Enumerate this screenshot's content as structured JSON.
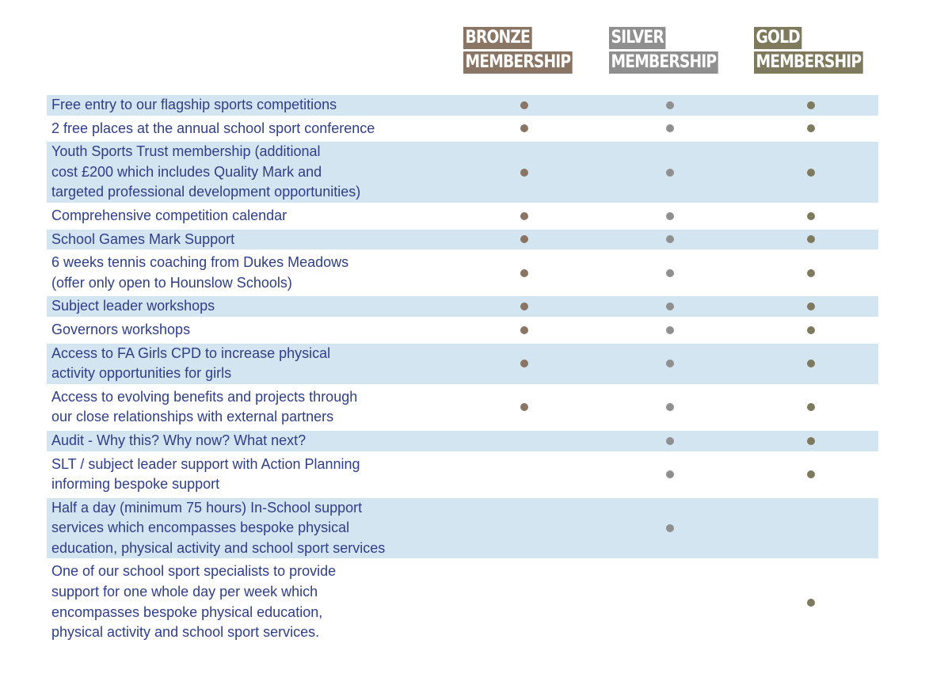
{
  "colors": {
    "bronze": "#8a7564",
    "silver": "#8f8f8f",
    "gold": "#7f7a5e",
    "row_shade": "#d3e5f0",
    "text": "#2f3e8a"
  },
  "tiers": [
    {
      "key": "bronze",
      "line1": "BRONZE",
      "line2": "MEMBERSHIP"
    },
    {
      "key": "silver",
      "line1": "SILVER",
      "line2": "MEMBERSHIP"
    },
    {
      "key": "gold",
      "line1": "GOLD",
      "line2": "MEMBERSHIP"
    }
  ],
  "rows": [
    {
      "label": "Free entry to our flagship sports competitions",
      "bronze": true,
      "silver": true,
      "gold": true
    },
    {
      "label": "2 free places at the annual school sport conference",
      "bronze": true,
      "silver": true,
      "gold": true
    },
    {
      "label": "Youth Sports Trust membership (additional\ncost £200 which includes Quality Mark and\ntargeted professional development opportunities)",
      "bronze": true,
      "silver": true,
      "gold": true
    },
    {
      "label": "Comprehensive competition calendar",
      "bronze": true,
      "silver": true,
      "gold": true
    },
    {
      "label": "School Games Mark Support",
      "bronze": true,
      "silver": true,
      "gold": true
    },
    {
      "label": "6 weeks tennis coaching from Dukes Meadows\n(offer only open to Hounslow Schools)",
      "bronze": true,
      "silver": true,
      "gold": true
    },
    {
      "label": "Subject leader workshops",
      "bronze": true,
      "silver": true,
      "gold": true
    },
    {
      "label": "Governors workshops",
      "bronze": true,
      "silver": true,
      "gold": true
    },
    {
      "label": "Access to FA Girls CPD to increase physical\nactivity opportunities for girls",
      "bronze": true,
      "silver": true,
      "gold": true
    },
    {
      "label": "Access to evolving benefits and projects through\nour close relationships with external partners",
      "bronze": true,
      "silver": true,
      "gold": true
    },
    {
      "label": "Audit - Why this? Why now? What next?",
      "bronze": false,
      "silver": true,
      "gold": true
    },
    {
      "label": "SLT / subject leader support with Action Planning\ninforming bespoke support",
      "bronze": false,
      "silver": true,
      "gold": true
    },
    {
      "label": "Half a day (minimum 75 hours) In-School support\nservices which encompasses bespoke physical\neducation, physical activity and school sport services",
      "bronze": false,
      "silver": true,
      "gold": false
    },
    {
      "label": "One of our school sport specialists to provide\nsupport for one whole day per week which\nencompasses bespoke physical education,\nphysical activity and school sport services.",
      "bronze": false,
      "silver": false,
      "gold": true
    }
  ]
}
